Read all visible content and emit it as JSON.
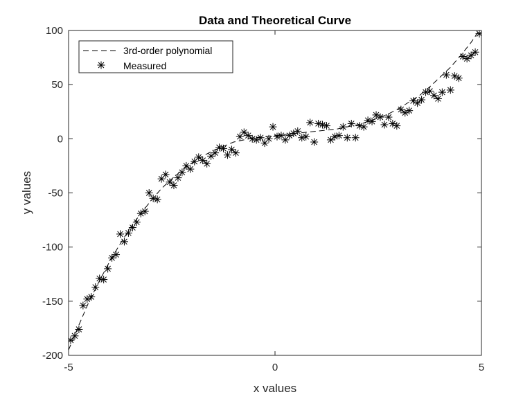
{
  "chart_data": {
    "type": "scatter",
    "title": "Data and Theoretical Curve",
    "xlabel": "x values",
    "ylabel": "y values",
    "xlim": [
      -5,
      5
    ],
    "ylim": [
      -200,
      100
    ],
    "xticks": [
      "-5",
      "0",
      "5"
    ],
    "yticks": [
      "100",
      "50",
      "0",
      "-50",
      "-100",
      "-150",
      "-200"
    ],
    "grid": false,
    "legend_position": "top-left",
    "series": [
      {
        "name": "3rd-order polynomial",
        "style": "dashed-line",
        "color": "#000000",
        "x": [
          -5,
          -4.75,
          -4.5,
          -4.25,
          -4,
          -3.75,
          -3.5,
          -3.25,
          -3,
          -2.75,
          -2.5,
          -2.25,
          -2,
          -1.75,
          -1.5,
          -1.25,
          -1,
          -0.75,
          -0.5,
          -0.25,
          0,
          0.25,
          0.5,
          0.75,
          1,
          1.25,
          1.5,
          1.75,
          2,
          2.25,
          2.5,
          2.75,
          3,
          3.25,
          3.5,
          3.75,
          4,
          4.25,
          4.5,
          4.75,
          5
        ],
        "y": [
          -195,
          -172,
          -150,
          -131,
          -113,
          -97,
          -82,
          -69,
          -57,
          -46,
          -37,
          -29,
          -22,
          -16,
          -11,
          -7,
          -3,
          -1,
          1,
          2,
          3,
          4,
          5,
          6,
          7,
          8,
          9,
          11,
          13,
          16,
          19,
          23,
          28,
          34,
          40,
          48,
          57,
          66,
          77,
          89,
          103
        ]
      },
      {
        "name": "Measured",
        "style": "asterisk-marker",
        "color": "#000000",
        "x": [
          -4.95,
          -4.85,
          -4.75,
          -4.65,
          -4.55,
          -4.45,
          -4.35,
          -4.25,
          -4.15,
          -4.05,
          -3.95,
          -3.85,
          -3.75,
          -3.65,
          -3.55,
          -3.45,
          -3.35,
          -3.25,
          -3.15,
          -3.05,
          -2.95,
          -2.85,
          -2.75,
          -2.65,
          -2.55,
          -2.45,
          -2.35,
          -2.25,
          -2.15,
          -2.05,
          -1.95,
          -1.85,
          -1.75,
          -1.65,
          -1.55,
          -1.45,
          -1.35,
          -1.25,
          -1.15,
          -1.05,
          -0.95,
          -0.85,
          -0.75,
          -0.65,
          -0.55,
          -0.45,
          -0.35,
          -0.25,
          -0.15,
          -0.05,
          0.05,
          0.15,
          0.25,
          0.35,
          0.45,
          0.55,
          0.65,
          0.75,
          0.85,
          0.95,
          1.05,
          1.15,
          1.25,
          1.35,
          1.45,
          1.55,
          1.65,
          1.75,
          1.85,
          1.95,
          2.05,
          2.15,
          2.25,
          2.35,
          2.45,
          2.55,
          2.65,
          2.75,
          2.85,
          2.95,
          3.05,
          3.15,
          3.25,
          3.35,
          3.45,
          3.55,
          3.65,
          3.75,
          3.85,
          3.95,
          4.05,
          4.15,
          4.25,
          4.35,
          4.45,
          4.55,
          4.65,
          4.75,
          4.85,
          4.95
        ],
        "y": [
          -186,
          -182,
          -176,
          -154,
          -148,
          -146,
          -137,
          -129,
          -130,
          -120,
          -110,
          -107,
          -88,
          -95,
          -87,
          -82,
          -77,
          -69,
          -67,
          -50,
          -55,
          -56,
          -37,
          -33,
          -40,
          -43,
          -36,
          -31,
          -25,
          -28,
          -21,
          -17,
          -20,
          -23,
          -16,
          -13,
          -8,
          -9,
          -15,
          -10,
          -13,
          2,
          6,
          3,
          0,
          -1,
          1,
          -4,
          0,
          11,
          2,
          3,
          -1,
          3,
          5,
          7,
          1,
          2,
          15,
          -3,
          14,
          13,
          12,
          -1,
          2,
          3,
          11,
          1,
          14,
          1,
          12,
          11,
          17,
          16,
          22,
          20,
          13,
          20,
          14,
          12,
          27,
          24,
          26,
          35,
          33,
          36,
          43,
          44,
          40,
          37,
          43,
          59,
          45,
          58,
          56,
          76,
          74,
          77,
          80,
          97
        ]
      }
    ]
  }
}
